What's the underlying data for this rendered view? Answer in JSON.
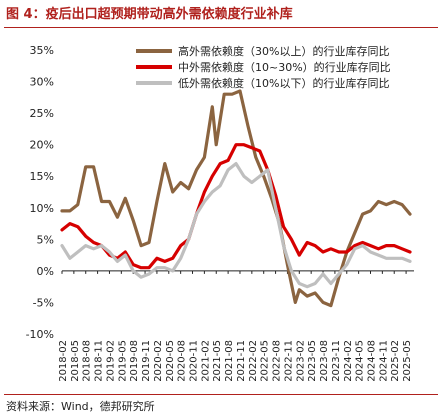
{
  "header": {
    "title": "图 4：疫后出口超预期带动高外需依赖度行业补库"
  },
  "footer": {
    "source": "资料来源：Wind，德邦研究所"
  },
  "colors": {
    "title": "#b0211d",
    "high": "#8B6440",
    "mid": "#D60000",
    "low": "#BFBFBF"
  },
  "chart_data": {
    "type": "line",
    "title": "",
    "xlabel": "",
    "ylabel": "",
    "ylim": [
      -10,
      35
    ],
    "yticks": [
      "-10%",
      "-5%",
      "0%",
      "5%",
      "10%",
      "15%",
      "20%",
      "25%",
      "30%",
      "35%"
    ],
    "yticks_values": [
      -10,
      -5,
      0,
      5,
      10,
      15,
      20,
      25,
      30,
      35
    ],
    "legend_position": "top-center",
    "x_tick_labels": [
      "2018-02",
      "2018-05",
      "2018-08",
      "2018-11",
      "2019-02",
      "2019-05",
      "2019-08",
      "2019-11",
      "2020-02",
      "2020-05",
      "2020-08",
      "2020-11",
      "2021-02",
      "2021-05",
      "2021-08",
      "2021-11",
      "2022-02",
      "2022-05",
      "2022-08",
      "2022-11",
      "2023-02",
      "2023-05",
      "2023-08",
      "2023-11",
      "2024-02",
      "2024-05",
      "2024-08",
      "2024-11",
      "2025-02",
      "2025-05"
    ],
    "x_start": "2018-02",
    "x_end": "2025-07",
    "series": [
      {
        "name": "高外需依赖度（30%以上）的行业库存同比",
        "color": "#8B6440",
        "points": [
          [
            "2018-02",
            9.5
          ],
          [
            "2018-04",
            9.5
          ],
          [
            "2018-06",
            10.5
          ],
          [
            "2018-08",
            16.5
          ],
          [
            "2018-10",
            16.5
          ],
          [
            "2018-12",
            11.0
          ],
          [
            "2019-02",
            11.0
          ],
          [
            "2019-04",
            8.5
          ],
          [
            "2019-06",
            11.5
          ],
          [
            "2019-08",
            8.0
          ],
          [
            "2019-10",
            4.0
          ],
          [
            "2019-12",
            4.5
          ],
          [
            "2020-02",
            11.0
          ],
          [
            "2020-04",
            17.0
          ],
          [
            "2020-06",
            12.5
          ],
          [
            "2020-08",
            14.0
          ],
          [
            "2020-10",
            13.0
          ],
          [
            "2020-12",
            16.0
          ],
          [
            "2021-02",
            18.0
          ],
          [
            "2021-04",
            26.0
          ],
          [
            "2021-05",
            20.0
          ],
          [
            "2021-07",
            28.0
          ],
          [
            "2021-09",
            28.0
          ],
          [
            "2021-11",
            28.5
          ],
          [
            "2022-01",
            23.0
          ],
          [
            "2022-03",
            18.0
          ],
          [
            "2022-05",
            15.0
          ],
          [
            "2022-07",
            11.5
          ],
          [
            "2022-09",
            7.5
          ],
          [
            "2022-11",
            1.0
          ],
          [
            "2023-01",
            -5.0
          ],
          [
            "2023-02",
            -3.0
          ],
          [
            "2023-04",
            -4.0
          ],
          [
            "2023-06",
            -3.5
          ],
          [
            "2023-08",
            -5.0
          ],
          [
            "2023-10",
            -5.5
          ],
          [
            "2023-12",
            -1.0
          ],
          [
            "2024-02",
            3.0
          ],
          [
            "2024-04",
            6.0
          ],
          [
            "2024-06",
            9.0
          ],
          [
            "2024-08",
            9.5
          ],
          [
            "2024-10",
            11.0
          ],
          [
            "2024-12",
            10.5
          ],
          [
            "2025-02",
            11.0
          ],
          [
            "2025-04",
            10.5
          ],
          [
            "2025-06",
            9.0
          ]
        ]
      },
      {
        "name": "中外需依赖度（10~30%）的行业库存同比",
        "color": "#D60000",
        "points": [
          [
            "2018-02",
            6.5
          ],
          [
            "2018-04",
            7.5
          ],
          [
            "2018-06",
            7.0
          ],
          [
            "2018-08",
            5.5
          ],
          [
            "2018-10",
            4.5
          ],
          [
            "2018-12",
            4.0
          ],
          [
            "2019-02",
            2.5
          ],
          [
            "2019-04",
            2.0
          ],
          [
            "2019-06",
            3.0
          ],
          [
            "2019-08",
            1.0
          ],
          [
            "2019-10",
            0.5
          ],
          [
            "2019-12",
            0.5
          ],
          [
            "2020-02",
            2.0
          ],
          [
            "2020-04",
            1.5
          ],
          [
            "2020-06",
            2.0
          ],
          [
            "2020-08",
            4.0
          ],
          [
            "2020-10",
            5.0
          ],
          [
            "2020-12",
            9.0
          ],
          [
            "2021-02",
            12.5
          ],
          [
            "2021-04",
            15.0
          ],
          [
            "2021-06",
            17.0
          ],
          [
            "2021-08",
            17.5
          ],
          [
            "2021-10",
            20.0
          ],
          [
            "2021-12",
            20.0
          ],
          [
            "2022-02",
            19.5
          ],
          [
            "2022-04",
            19.0
          ],
          [
            "2022-06",
            16.0
          ],
          [
            "2022-08",
            12.0
          ],
          [
            "2022-10",
            7.0
          ],
          [
            "2022-12",
            5.0
          ],
          [
            "2023-02",
            2.5
          ],
          [
            "2023-04",
            4.5
          ],
          [
            "2023-06",
            4.0
          ],
          [
            "2023-08",
            3.0
          ],
          [
            "2023-10",
            3.5
          ],
          [
            "2023-12",
            3.0
          ],
          [
            "2024-02",
            3.0
          ],
          [
            "2024-04",
            4.0
          ],
          [
            "2024-06",
            4.5
          ],
          [
            "2024-08",
            4.0
          ],
          [
            "2024-10",
            3.5
          ],
          [
            "2024-12",
            4.0
          ],
          [
            "2025-02",
            4.0
          ],
          [
            "2025-04",
            3.5
          ],
          [
            "2025-06",
            3.0
          ]
        ]
      },
      {
        "name": "低外需依赖度（10%以下）的行业库存同比",
        "color": "#BFBFBF",
        "points": [
          [
            "2018-02",
            4.0
          ],
          [
            "2018-04",
            2.0
          ],
          [
            "2018-06",
            3.0
          ],
          [
            "2018-08",
            4.0
          ],
          [
            "2018-10",
            3.5
          ],
          [
            "2018-12",
            4.0
          ],
          [
            "2019-02",
            3.0
          ],
          [
            "2019-04",
            1.5
          ],
          [
            "2019-06",
            2.5
          ],
          [
            "2019-08",
            0.0
          ],
          [
            "2019-10",
            -1.0
          ],
          [
            "2019-12",
            -0.5
          ],
          [
            "2020-02",
            0.5
          ],
          [
            "2020-04",
            0.5
          ],
          [
            "2020-06",
            0.0
          ],
          [
            "2020-08",
            2.0
          ],
          [
            "2020-10",
            5.0
          ],
          [
            "2020-12",
            9.0
          ],
          [
            "2021-02",
            11.0
          ],
          [
            "2021-04",
            12.5
          ],
          [
            "2021-06",
            13.5
          ],
          [
            "2021-08",
            16.0
          ],
          [
            "2021-10",
            17.0
          ],
          [
            "2021-12",
            15.0
          ],
          [
            "2022-02",
            14.0
          ],
          [
            "2022-04",
            15.0
          ],
          [
            "2022-06",
            16.0
          ],
          [
            "2022-08",
            10.0
          ],
          [
            "2022-10",
            4.0
          ],
          [
            "2022-12",
            0.0
          ],
          [
            "2023-02",
            -2.0
          ],
          [
            "2023-04",
            -2.5
          ],
          [
            "2023-06",
            -2.0
          ],
          [
            "2023-08",
            -0.5
          ],
          [
            "2023-10",
            -2.0
          ],
          [
            "2023-12",
            -0.5
          ],
          [
            "2024-02",
            1.0
          ],
          [
            "2024-04",
            3.5
          ],
          [
            "2024-06",
            4.0
          ],
          [
            "2024-08",
            3.0
          ],
          [
            "2024-10",
            2.5
          ],
          [
            "2024-12",
            2.0
          ],
          [
            "2025-02",
            2.0
          ],
          [
            "2025-04",
            2.0
          ],
          [
            "2025-06",
            1.5
          ]
        ]
      }
    ]
  }
}
